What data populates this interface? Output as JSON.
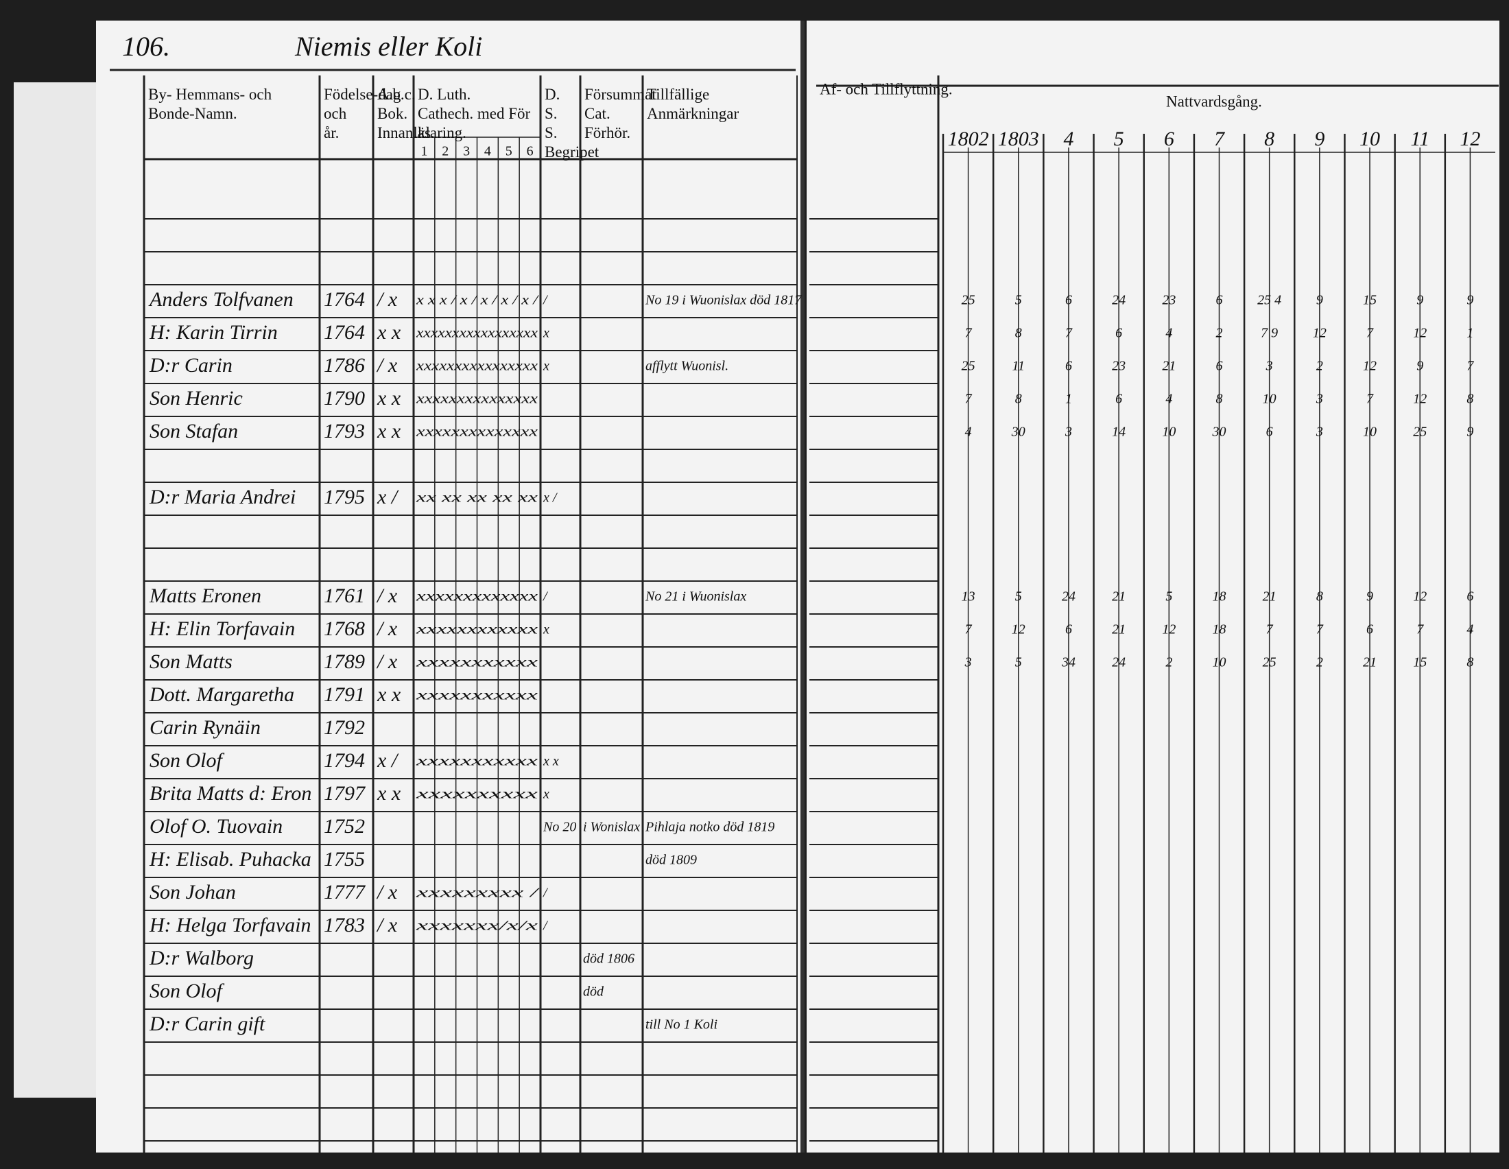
{
  "page_number": "106.",
  "village": "Niemis eller Koli",
  "left_headers": {
    "name": "By- Hemmans- och Bonde-Namn.",
    "born": "Födelse-dag och år.",
    "abc": "A.b.c. Bok. Innanläs.",
    "cathech": "D. Luth. Cathech. med För klaring.",
    "dss": "D. S. S. Begripet",
    "forsum": "Försummat Cat. Förhör.",
    "notes": "Tillfällige Anmärkningar"
  },
  "cathech_columns": [
    "1",
    "2",
    "3",
    "4",
    "5",
    "6"
  ],
  "right_headers": {
    "moves": "Af- och Tillflyttning.",
    "communion": "Nattvardsgång."
  },
  "years": [
    "1802",
    "1803",
    "4",
    "5",
    "6",
    "7",
    "8",
    "9",
    "10",
    "11",
    "12"
  ],
  "rows": [
    {
      "name": "Anders Tolfvanen",
      "born": "1764",
      "abc": "/ x",
      "cathech": "x x x / x / x / x / x /",
      "dss": "/",
      "note": "No 19 i Wuonislax död 1817",
      "communion": [
        "25",
        "5",
        "6",
        "24",
        "23",
        "6",
        "25 4",
        "9",
        "15",
        "9",
        "9"
      ]
    },
    {
      "name": "H: Karin Tirrin",
      "born": "1764",
      "abc": "x x",
      "cathech": "xxxxxxxxxxxxxxxxx",
      "dss": "x",
      "communion": [
        "7",
        "8",
        "7",
        "6",
        "4",
        "2",
        "7 9",
        "12",
        "7",
        "12",
        "1"
      ]
    },
    {
      "name": "D:r Carin",
      "born": "1786",
      "abc": "/ x",
      "cathech": "xxxxxxxxxxxxxxxx",
      "dss": "x",
      "note": "afflytt Wuonisl.",
      "communion": [
        "25",
        "11",
        "6",
        "23",
        "21",
        "6",
        "3",
        "2",
        "12",
        "9",
        "7"
      ]
    },
    {
      "name": "Son Henric",
      "born": "1790",
      "abc": "x x",
      "cathech": "xxxxxxxxxxxxxxx",
      "communion": [
        "7",
        "8",
        "1",
        "6",
        "4",
        "8",
        "10",
        "3",
        "7",
        "12",
        "8"
      ]
    },
    {
      "name": "Son Stafan",
      "born": "1793",
      "abc": "x x",
      "cathech": "xxxxxxxxxxxxxx",
      "communion": [
        "4",
        "30",
        "3",
        "14",
        "10",
        "30",
        "6",
        "3",
        "10",
        "25",
        "9"
      ]
    },
    {
      "name": "D:r Maria Andrei",
      "born": "1795",
      "abc": "x /",
      "cathech": "xx xx xx xx xx",
      "dss": "x /"
    },
    {
      "name": "Matts Eronen",
      "born": "1761",
      "abc": "/ x",
      "cathech": "xxxxxxxxxxxxx",
      "dss": "/",
      "note": "No 21 i Wuonislax",
      "communion": [
        "13",
        "5",
        "24",
        "21",
        "5",
        "18",
        "21",
        "8",
        "9",
        "12",
        "6"
      ]
    },
    {
      "name": "H: Elin Torfavain",
      "born": "1768",
      "abc": "/ x",
      "cathech": "xxxxxxxxxxxx",
      "dss": "x",
      "communion": [
        "7",
        "12",
        "6",
        "21",
        "12",
        "18",
        "7",
        "7",
        "6",
        "7",
        "4"
      ]
    },
    {
      "name": "Son Matts",
      "born": "1789",
      "abc": "/ x",
      "cathech": "xxxxxxxxxxx",
      "communion": [
        "3",
        "5",
        "34",
        "24",
        "2",
        "10",
        "25",
        "2",
        "21",
        "15",
        "8"
      ]
    },
    {
      "name": "Dott. Margaretha",
      "born": "1791",
      "abc": "x x",
      "cathech": "xxxxxxxxxxx"
    },
    {
      "name": "Carin Rynäin",
      "born": "1792"
    },
    {
      "name": "Son Olof",
      "born": "1794",
      "abc": "x /",
      "cathech": "xxxxxxxxxxx",
      "dss": "x x"
    },
    {
      "name": "Brita Matts d: Eron",
      "born": "1797",
      "abc": "x x",
      "cathech": "xxxxxxxxxx",
      "dss": "x"
    },
    {
      "name": "Olof O. Tuovain",
      "born": "1752",
      "dss": "No 20",
      "forsum": "i Wonislax",
      "note": "Pihlaja notko död 1819"
    },
    {
      "name": "H: Elisab. Puhacka",
      "born": "1755",
      "note": "död 1809"
    },
    {
      "name": "Son Johan",
      "born": "1777",
      "abc": "/ x",
      "cathech": "xxxxxxxxx /",
      "dss": "/"
    },
    {
      "name": "H: Helga Torfavain",
      "born": "1783",
      "abc": "/ x",
      "cathech": "xxxxxxx/x/x",
      "dss": "/"
    },
    {
      "name": "D:r Walborg",
      "forsum": "död 1806"
    },
    {
      "name": "Son Olof",
      "forsum": "död"
    },
    {
      "name": "D:r Carin gift",
      "note": "till No 1 Koli"
    }
  ]
}
